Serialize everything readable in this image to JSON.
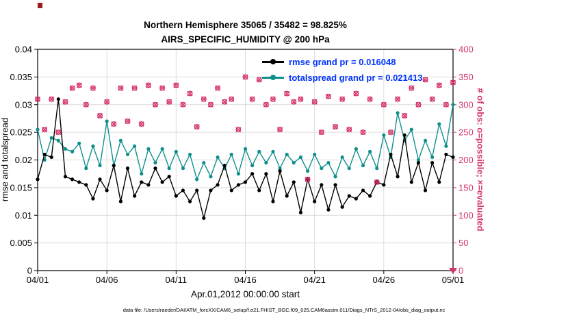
{
  "title": {
    "line1": "Northern Hemisphere 35065 / 35482 = 98.825%",
    "line2": "AIRS_SPECIFIC_HUMIDITY @ 200 hPa"
  },
  "axes": {
    "left_label": "rmse and totalspread",
    "right_label": "# of obs: o=possible; ×=evaluated",
    "x_label": "Apr.01,2012 00:00:00 start"
  },
  "legend": {
    "text_color": "#0033ff",
    "items": [
      {
        "label": "rmse grand pr = 0.016048",
        "color": "#000000"
      },
      {
        "label": "totalspread grand pr = 0.021413",
        "color": "#0f8f8c"
      }
    ]
  },
  "footer": "data file: /Users/raeder/DAI/ATM_forcXX/CAM6_setup/f.e21.FHIST_BGC.f09_025.CAM6assim.011/Diags_NTrS_2012-04/obs_diag_output.nc",
  "chart_data": {
    "type": "line",
    "title": "Northern Hemisphere 35065 / 35482 = 98.825% | AIRS_SPECIFIC_HUMIDITY @ 200 hPa",
    "x_start": 0,
    "x_step": 0.5,
    "xlim": [
      0,
      30
    ],
    "ylim_left": [
      0,
      0.04
    ],
    "ylim_right": [
      0,
      400
    ],
    "grid": true,
    "grid_color": "#dcdcdc",
    "x_tick_values": [
      0,
      5,
      10,
      15,
      20,
      25,
      30
    ],
    "x_tick_labels": [
      "04/01",
      "04/06",
      "04/11",
      "04/16",
      "04/21",
      "04/26",
      "05/01"
    ],
    "left_tick_values": [
      0,
      0.005,
      0.01,
      0.015,
      0.02,
      0.025,
      0.03,
      0.035,
      0.04
    ],
    "left_tick_labels": [
      "0",
      "0.005",
      "0.01",
      "0.015",
      "0.02",
      "0.025",
      "0.03",
      "0.035",
      "0.04"
    ],
    "right_tick_values": [
      0,
      50,
      100,
      150,
      200,
      250,
      300,
      350,
      400
    ],
    "right_tick_labels": [
      "0",
      "50",
      "100",
      "150",
      "200",
      "250",
      "300",
      "350",
      "400"
    ],
    "bottom_right_offscale_marker": {
      "shape": "triangle-down",
      "day": 30,
      "value": 0
    },
    "series": [
      {
        "name": "totalspread",
        "axis": "left",
        "line": true,
        "marker": "dot",
        "color": "#0f8f8c",
        "grand_mean": 0.021413,
        "values": [
          0.0255,
          0.02,
          0.024,
          0.0235,
          0.022,
          0.0215,
          0.023,
          0.0185,
          0.0225,
          0.019,
          0.027,
          0.019,
          0.0235,
          0.021,
          0.0225,
          0.0175,
          0.022,
          0.0195,
          0.022,
          0.0185,
          0.0215,
          0.0185,
          0.021,
          0.0165,
          0.0195,
          0.017,
          0.0205,
          0.0185,
          0.021,
          0.0175,
          0.022,
          0.019,
          0.0215,
          0.0195,
          0.0215,
          0.0185,
          0.021,
          0.0195,
          0.0205,
          0.018,
          0.021,
          0.0185,
          0.0195,
          0.017,
          0.0205,
          0.0185,
          0.022,
          0.019,
          0.0215,
          0.0185,
          0.0245,
          0.0205,
          0.0285,
          0.0235,
          0.0255,
          0.02,
          0.0235,
          0.0205,
          0.0265,
          0.0225,
          0.03
        ]
      },
      {
        "name": "rmse",
        "axis": "left",
        "line": true,
        "marker": "dot",
        "color": "#000000",
        "grand_mean": 0.016048,
        "values": [
          0.0165,
          0.021,
          0.0205,
          0.031,
          0.017,
          0.0165,
          0.016,
          0.0155,
          0.013,
          0.0165,
          0.0145,
          0.019,
          0.0125,
          0.0185,
          0.0135,
          0.016,
          0.0155,
          0.0185,
          0.016,
          0.017,
          0.0135,
          0.0145,
          0.0125,
          0.0145,
          0.0095,
          0.0145,
          0.0155,
          0.019,
          0.0145,
          0.0155,
          0.016,
          0.0175,
          0.0145,
          0.0175,
          0.0125,
          0.018,
          0.0135,
          0.016,
          0.0105,
          0.0165,
          0.0125,
          0.0155,
          0.011,
          0.0155,
          0.0115,
          0.0135,
          0.013,
          0.0145,
          0.0135,
          0.016,
          0.0155,
          0.021,
          0.017,
          0.0245,
          0.016,
          0.0195,
          0.0145,
          0.0195,
          0.016,
          0.021,
          0.0205
        ]
      },
      {
        "name": "obs_possible",
        "axis": "right",
        "line": false,
        "marker": "circle-open",
        "color": "#d6336c",
        "values": [
          310,
          255,
          310,
          250,
          305,
          330,
          335,
          300,
          330,
          280,
          305,
          265,
          330,
          270,
          330,
          265,
          335,
          300,
          330,
          305,
          335,
          300,
          320,
          260,
          310,
          300,
          330,
          305,
          310,
          255,
          350,
          310,
          345,
          300,
          310,
          255,
          320,
          305,
          310,
          165,
          305,
          250,
          315,
          260,
          310,
          255,
          320,
          250,
          310,
          160,
          300,
          250,
          310,
          280,
          330,
          300,
          345,
          310,
          335,
          300,
          340
        ]
      },
      {
        "name": "obs_evaluated",
        "axis": "right",
        "line": false,
        "marker": "x",
        "color": "#d6336c",
        "values": [
          310,
          255,
          310,
          250,
          305,
          330,
          335,
          300,
          330,
          280,
          305,
          265,
          330,
          270,
          330,
          265,
          335,
          300,
          330,
          305,
          335,
          300,
          320,
          260,
          310,
          300,
          330,
          305,
          310,
          255,
          350,
          310,
          345,
          300,
          310,
          255,
          320,
          305,
          310,
          165,
          305,
          250,
          315,
          260,
          310,
          255,
          320,
          250,
          310,
          160,
          300,
          250,
          310,
          280,
          330,
          300,
          345,
          310,
          335,
          300,
          340
        ]
      }
    ]
  }
}
